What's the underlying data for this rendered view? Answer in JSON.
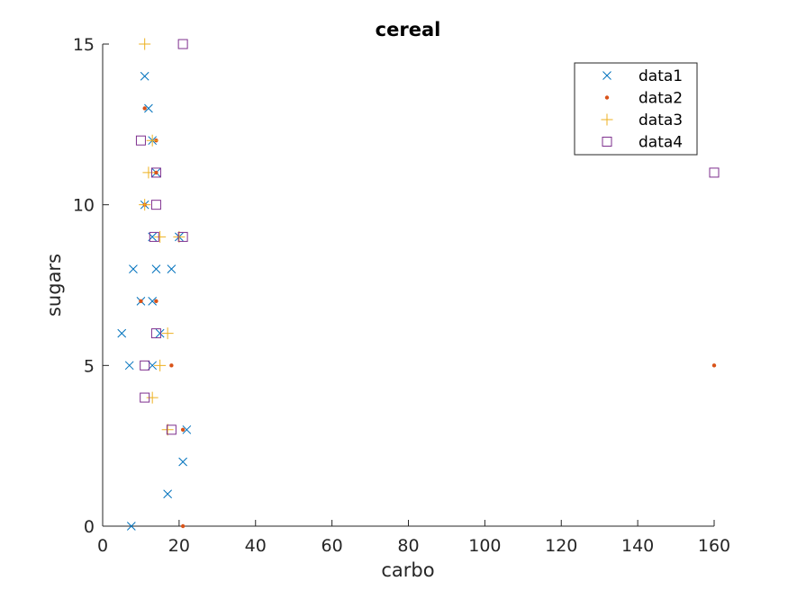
{
  "chart_data": {
    "type": "scatter",
    "title": "cereal",
    "xlabel": "carbo",
    "ylabel": "sugars",
    "xlim": [
      0,
      160
    ],
    "ylim": [
      0,
      15
    ],
    "xticks": [
      0,
      20,
      40,
      60,
      80,
      100,
      120,
      140,
      160
    ],
    "yticks": [
      0,
      5,
      10,
      15
    ],
    "grid": false,
    "legend_position": "top-right",
    "series": [
      {
        "name": "data1",
        "marker": "x",
        "color": "#0072BD",
        "points": [
          [
            7.5,
            0
          ],
          [
            17,
            1
          ],
          [
            21,
            2
          ],
          [
            22,
            3
          ],
          [
            5,
            6
          ],
          [
            15,
            6
          ],
          [
            7,
            5
          ],
          [
            13,
            5
          ],
          [
            8,
            8
          ],
          [
            14,
            8
          ],
          [
            18,
            8
          ],
          [
            13,
            7
          ],
          [
            10,
            7
          ],
          [
            13,
            9
          ],
          [
            11,
            10
          ],
          [
            13,
            12
          ],
          [
            12,
            13
          ],
          [
            11,
            14
          ],
          [
            14,
            11
          ],
          [
            20,
            9
          ]
        ]
      },
      {
        "name": "data2",
        "marker": "dot",
        "color": "#D95319",
        "points": [
          [
            21,
            0
          ],
          [
            21,
            3
          ],
          [
            18,
            5
          ],
          [
            10,
            7
          ],
          [
            14,
            7
          ],
          [
            11,
            10
          ],
          [
            14,
            11
          ],
          [
            14,
            12
          ],
          [
            11,
            13
          ],
          [
            160,
            5
          ]
        ]
      },
      {
        "name": "data3",
        "marker": "plus",
        "color": "#EDB120",
        "points": [
          [
            11,
            15
          ],
          [
            13,
            12
          ],
          [
            12,
            11
          ],
          [
            11,
            10
          ],
          [
            15,
            9
          ],
          [
            20,
            9
          ],
          [
            17,
            6
          ],
          [
            15,
            5
          ],
          [
            13,
            4
          ],
          [
            17,
            3
          ]
        ]
      },
      {
        "name": "data4",
        "marker": "square",
        "color": "#7E2F8E",
        "points": [
          [
            21,
            15
          ],
          [
            10,
            12
          ],
          [
            14,
            11
          ],
          [
            14,
            10
          ],
          [
            13.5,
            9
          ],
          [
            21,
            9
          ],
          [
            14,
            6
          ],
          [
            11,
            5
          ],
          [
            11,
            4
          ],
          [
            18,
            3
          ],
          [
            160,
            11
          ]
        ]
      }
    ]
  }
}
